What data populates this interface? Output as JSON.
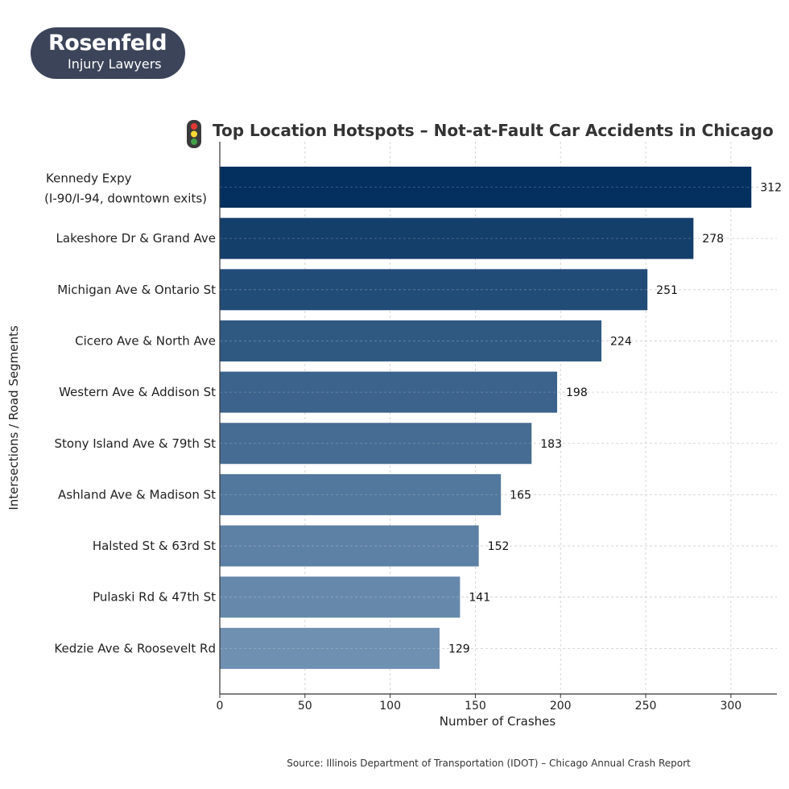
{
  "logo": {
    "brand": "Rosenfeld",
    "tagline": "Injury Lawyers"
  },
  "chart_data": {
    "type": "bar",
    "orientation": "horizontal",
    "title": "Top Location Hotspots – Not-at-Fault Car Accidents in Chicago",
    "title_icon": "traffic-light-icon",
    "xlabel": "Number of Crashes",
    "ylabel": "Intersections / Road Segments",
    "xlim": [
      0,
      327
    ],
    "xticks": [
      0,
      50,
      100,
      150,
      200,
      250,
      300
    ],
    "grid": true,
    "categories": [
      [
        "Kennedy Expy",
        "(I-90/I-94, downtown exits)"
      ],
      [
        "Lakeshore Dr & Grand Ave"
      ],
      [
        "Michigan Ave & Ontario St"
      ],
      [
        "Cicero Ave & North Ave"
      ],
      [
        "Western Ave & Addison St"
      ],
      [
        "Stony Island Ave & 79th St"
      ],
      [
        "Ashland Ave & Madison St"
      ],
      [
        "Halsted St & 63rd St"
      ],
      [
        "Pulaski Rd & 47th St"
      ],
      [
        "Kedzie Ave & Roosevelt Rd"
      ]
    ],
    "values": [
      312,
      278,
      251,
      224,
      198,
      183,
      165,
      152,
      141,
      129
    ],
    "colors": [
      "#03305f",
      "#153f6b",
      "#224c78",
      "#2f5981",
      "#3b638b",
      "#466c93",
      "#52789d",
      "#5d81a5",
      "#6689ab",
      "#6f90b1"
    ],
    "source": "Source: Illinois Department of Transportation (IDOT) – Chicago Annual Crash Report"
  }
}
